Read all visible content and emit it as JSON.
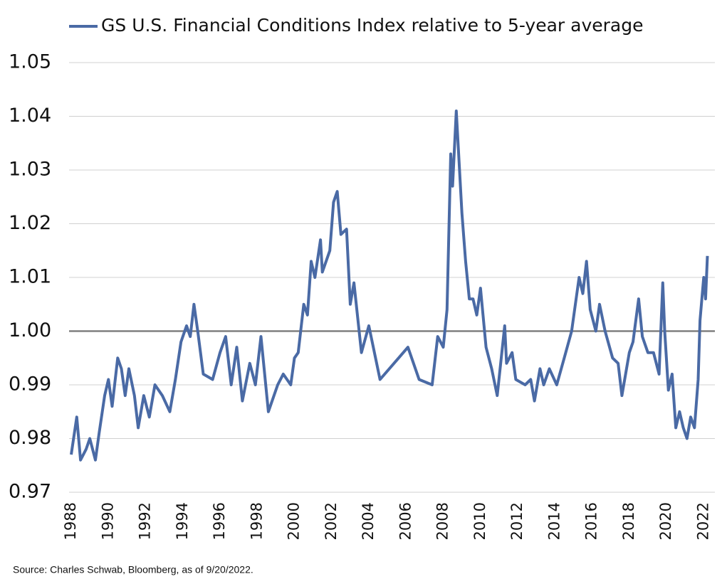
{
  "chart_data": {
    "type": "line",
    "source": "Source: Charles Schwab, Bloomberg, as of 9/20/2022.",
    "series": [
      {
        "name": "GS U.S. Financial Conditions Index relative to 5-year average",
        "color": "#4a6aa5",
        "x": [
          1988.0,
          1988.3,
          1988.5,
          1988.8,
          1989.0,
          1989.3,
          1989.5,
          1989.8,
          1990.0,
          1990.2,
          1990.5,
          1990.7,
          1990.9,
          1991.1,
          1991.4,
          1991.6,
          1991.9,
          1992.2,
          1992.5,
          1992.9,
          1993.3,
          1993.6,
          1993.9,
          1994.2,
          1994.4,
          1994.6,
          1994.8,
          1995.1,
          1995.6,
          1996.0,
          1996.3,
          1996.6,
          1996.9,
          1997.2,
          1997.6,
          1997.9,
          1998.2,
          1998.6,
          1999.1,
          1999.4,
          1999.8,
          2000.0,
          2000.2,
          2000.5,
          2000.7,
          2000.9,
          2001.1,
          2001.4,
          2001.5,
          2001.9,
          2002.1,
          2002.3,
          2002.5,
          2002.8,
          2003.0,
          2003.2,
          2003.6,
          2004.0,
          2004.6,
          2005.6,
          2006.1,
          2006.7,
          2007.4,
          2007.7,
          2008.0,
          2008.2,
          2008.4,
          2008.5,
          2008.7,
          2009.0,
          2009.2,
          2009.4,
          2009.6,
          2009.8,
          2010.0,
          2010.3,
          2010.6,
          2010.9,
          2011.3,
          2011.4,
          2011.7,
          2011.9,
          2012.4,
          2012.7,
          2012.9,
          2013.2,
          2013.4,
          2013.7,
          2014.1,
          2014.5,
          2014.9,
          2015.3,
          2015.5,
          2015.7,
          2015.9,
          2016.2,
          2016.4,
          2016.7,
          2017.1,
          2017.4,
          2017.6,
          2018.0,
          2018.2,
          2018.5,
          2018.7,
          2019.0,
          2019.3,
          2019.6,
          2019.8,
          2019.9,
          2020.1,
          2020.3,
          2020.5,
          2020.7,
          2020.9,
          2021.1,
          2021.3,
          2021.5,
          2021.7,
          2021.8,
          2022.0,
          2022.1,
          2022.2
        ],
        "values": [
          0.977,
          0.984,
          0.976,
          0.978,
          0.98,
          0.976,
          0.981,
          0.988,
          0.991,
          0.986,
          0.995,
          0.993,
          0.988,
          0.993,
          0.988,
          0.982,
          0.988,
          0.984,
          0.99,
          0.988,
          0.985,
          0.991,
          0.998,
          1.001,
          0.999,
          1.005,
          1.0,
          0.992,
          0.991,
          0.996,
          0.999,
          0.99,
          0.997,
          0.987,
          0.994,
          0.99,
          0.999,
          0.985,
          0.99,
          0.992,
          0.99,
          0.995,
          0.996,
          1.005,
          1.003,
          1.013,
          1.01,
          1.017,
          1.011,
          1.015,
          1.024,
          1.026,
          1.018,
          1.019,
          1.005,
          1.009,
          0.996,
          1.001,
          0.991,
          0.995,
          0.997,
          0.991,
          0.99,
          0.999,
          0.997,
          1.004,
          1.033,
          1.027,
          1.041,
          1.022,
          1.013,
          1.006,
          1.006,
          1.003,
          1.008,
          0.997,
          0.993,
          0.988,
          1.001,
          0.994,
          0.996,
          0.991,
          0.99,
          0.991,
          0.987,
          0.993,
          0.99,
          0.993,
          0.99,
          0.995,
          1.0,
          1.01,
          1.007,
          1.013,
          1.004,
          1.0,
          1.005,
          1.0,
          0.995,
          0.994,
          0.988,
          0.996,
          0.998,
          1.006,
          0.999,
          0.996,
          0.996,
          0.992,
          1.009,
          1.0,
          0.989,
          0.992,
          0.982,
          0.985,
          0.982,
          0.98,
          0.984,
          0.982,
          0.991,
          1.002,
          1.01,
          1.006,
          1.014
        ]
      }
    ],
    "xlim": [
      1988,
      2022.6
    ],
    "xticks": [
      1988,
      1990,
      1992,
      1994,
      1996,
      1998,
      2000,
      2002,
      2004,
      2006,
      2008,
      2010,
      2012,
      2014,
      2016,
      2018,
      2020,
      2022
    ],
    "ylim": [
      0.97,
      1.05
    ],
    "yticks": [
      0.97,
      0.98,
      0.99,
      {
        "value": 1.0,
        "label": "1.00"
      },
      1.01,
      1.02,
      1.03,
      1.04,
      1.05
    ],
    "grid": true,
    "baseline": 1.0
  }
}
